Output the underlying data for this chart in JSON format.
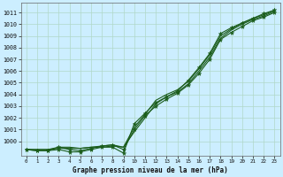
{
  "title": "Graphe pression niveau de la mer (hPa)",
  "bg_color": "#cceeff",
  "grid_color": "#b0d8c8",
  "line_color": "#1a5c1a",
  "xlim": [
    -0.5,
    23.5
  ],
  "ylim": [
    998.8,
    1011.8
  ],
  "yticks": [
    1000,
    1001,
    1002,
    1003,
    1004,
    1005,
    1006,
    1007,
    1008,
    1009,
    1010,
    1011
  ],
  "xticks": [
    0,
    1,
    2,
    3,
    4,
    5,
    6,
    7,
    8,
    9,
    10,
    11,
    12,
    13,
    14,
    15,
    16,
    17,
    18,
    19,
    20,
    21,
    22,
    23
  ],
  "series_smooth1": {
    "x": [
      0,
      1,
      2,
      3,
      4,
      5,
      6,
      7,
      8,
      9,
      10,
      11,
      12,
      13,
      14,
      15,
      16,
      17,
      18,
      19,
      20,
      21,
      22,
      23
    ],
    "y": [
      999.3,
      999.3,
      999.3,
      999.4,
      999.4,
      999.4,
      999.5,
      999.5,
      999.6,
      999.5,
      1000.8,
      1002.0,
      1003.2,
      1003.8,
      1004.2,
      1004.9,
      1006.0,
      1007.2,
      1008.8,
      1009.5,
      1010.0,
      1010.4,
      1010.7,
      1011.1
    ]
  },
  "series_smooth2": {
    "x": [
      0,
      1,
      2,
      3,
      4,
      5,
      6,
      7,
      8,
      9,
      10,
      11,
      12,
      13,
      14,
      15,
      16,
      17,
      18,
      19,
      20,
      21,
      22,
      23
    ],
    "y": [
      999.3,
      999.3,
      999.3,
      999.5,
      999.5,
      999.4,
      999.5,
      999.6,
      999.7,
      999.5,
      1001.2,
      1002.3,
      1003.5,
      1004.0,
      1004.4,
      1005.1,
      1006.2,
      1007.4,
      1009.0,
      1009.6,
      1010.1,
      1010.5,
      1010.8,
      1011.2
    ]
  },
  "series_marked1": {
    "x": [
      0,
      1,
      2,
      3,
      4,
      5,
      6,
      7,
      8,
      9,
      10,
      11,
      12,
      13,
      14,
      15,
      16,
      17,
      18,
      19,
      20,
      21,
      22,
      23
    ],
    "y": [
      999.3,
      999.2,
      999.2,
      999.3,
      999.1,
      999.1,
      999.3,
      999.5,
      999.5,
      999.0,
      1001.5,
      1002.4,
      1003.3,
      1003.8,
      1004.3,
      1005.2,
      1006.3,
      1007.5,
      1009.2,
      1009.7,
      1010.1,
      1010.5,
      1010.9,
      1011.2
    ]
  },
  "series_marked2": {
    "x": [
      0,
      1,
      2,
      3,
      4,
      5,
      6,
      7,
      8,
      9,
      10,
      11,
      12,
      13,
      14,
      15,
      16,
      17,
      18,
      19,
      20,
      21,
      22,
      23
    ],
    "y": [
      999.3,
      999.2,
      999.2,
      999.5,
      999.3,
      999.2,
      999.4,
      999.6,
      999.7,
      999.3,
      1001.0,
      1002.2,
      1003.0,
      1003.6,
      1004.1,
      1004.8,
      1005.8,
      1007.0,
      1008.7,
      1009.3,
      1009.8,
      1010.3,
      1010.6,
      1011.0
    ]
  }
}
